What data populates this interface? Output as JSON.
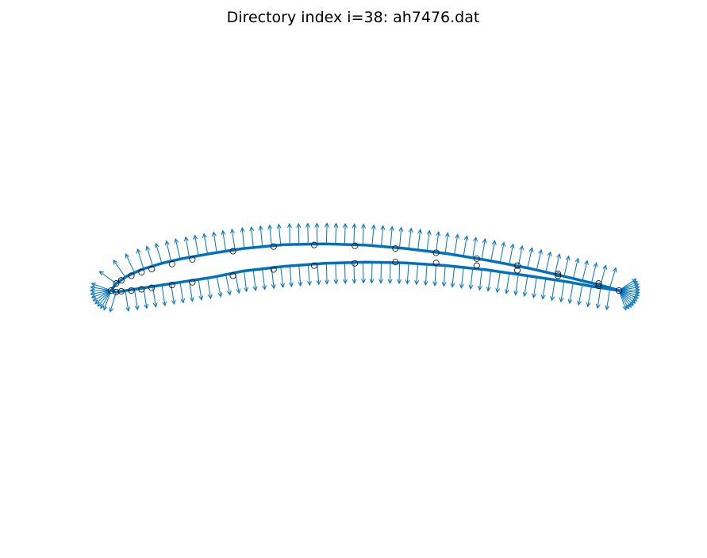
{
  "figure": {
    "title": "Directory index i=38: ah7476.dat"
  },
  "colors": {
    "surface": "#0072BD",
    "vectors": "#0072BD",
    "markers": "#000000",
    "background": "#ffffff"
  },
  "chart_data": {
    "type": "diagram",
    "axes_visible": false,
    "grid": false,
    "xlim": [
      -0.02,
      1.02
    ],
    "upper_surface": [
      [
        1.0,
        0.0
      ],
      [
        0.98,
        0.008
      ],
      [
        0.95,
        0.018
      ],
      [
        0.9,
        0.034
      ],
      [
        0.82,
        0.058
      ],
      [
        0.74,
        0.078
      ],
      [
        0.66,
        0.095
      ],
      [
        0.58,
        0.108
      ],
      [
        0.5,
        0.117
      ],
      [
        0.42,
        0.12
      ],
      [
        0.34,
        0.118
      ],
      [
        0.26,
        0.108
      ],
      [
        0.2,
        0.096
      ],
      [
        0.14,
        0.082
      ],
      [
        0.1,
        0.07
      ],
      [
        0.06,
        0.054
      ],
      [
        0.03,
        0.036
      ],
      [
        0.01,
        0.018
      ],
      [
        0.0,
        0.0
      ]
    ],
    "lower_surface": [
      [
        0.0,
        0.0
      ],
      [
        0.01,
        -0.004
      ],
      [
        0.03,
        0.0
      ],
      [
        0.06,
        0.006
      ],
      [
        0.1,
        0.014
      ],
      [
        0.14,
        0.022
      ],
      [
        0.2,
        0.034
      ],
      [
        0.26,
        0.05
      ],
      [
        0.34,
        0.062
      ],
      [
        0.42,
        0.07
      ],
      [
        0.5,
        0.073
      ],
      [
        0.58,
        0.071
      ],
      [
        0.66,
        0.064
      ],
      [
        0.74,
        0.053
      ],
      [
        0.82,
        0.038
      ],
      [
        0.9,
        0.022
      ],
      [
        0.95,
        0.01
      ],
      [
        0.98,
        0.004
      ],
      [
        1.0,
        0.0
      ]
    ],
    "panel_nodes": [
      [
        0.0,
        0.0
      ],
      [
        0.01,
        0.018
      ],
      [
        0.02,
        0.026
      ],
      [
        0.04,
        0.038
      ],
      [
        0.06,
        0.047
      ],
      [
        0.08,
        0.055
      ],
      [
        0.12,
        0.068
      ],
      [
        0.16,
        0.08
      ],
      [
        0.24,
        0.101
      ],
      [
        0.32,
        0.113
      ],
      [
        0.4,
        0.117
      ],
      [
        0.48,
        0.115
      ],
      [
        0.56,
        0.108
      ],
      [
        0.64,
        0.097
      ],
      [
        0.72,
        0.082
      ],
      [
        0.8,
        0.064
      ],
      [
        0.88,
        0.043
      ],
      [
        0.96,
        0.018
      ],
      [
        1.0,
        0.0
      ],
      [
        0.01,
        -0.004
      ],
      [
        0.02,
        -0.002
      ],
      [
        0.04,
        0.0
      ],
      [
        0.06,
        0.003
      ],
      [
        0.08,
        0.007
      ],
      [
        0.12,
        0.014
      ],
      [
        0.16,
        0.021
      ],
      [
        0.24,
        0.038
      ],
      [
        0.32,
        0.054
      ],
      [
        0.4,
        0.064
      ],
      [
        0.48,
        0.07
      ],
      [
        0.56,
        0.073
      ],
      [
        0.64,
        0.071
      ],
      [
        0.72,
        0.064
      ],
      [
        0.8,
        0.052
      ],
      [
        0.88,
        0.038
      ],
      [
        0.96,
        0.012
      ]
    ]
  }
}
